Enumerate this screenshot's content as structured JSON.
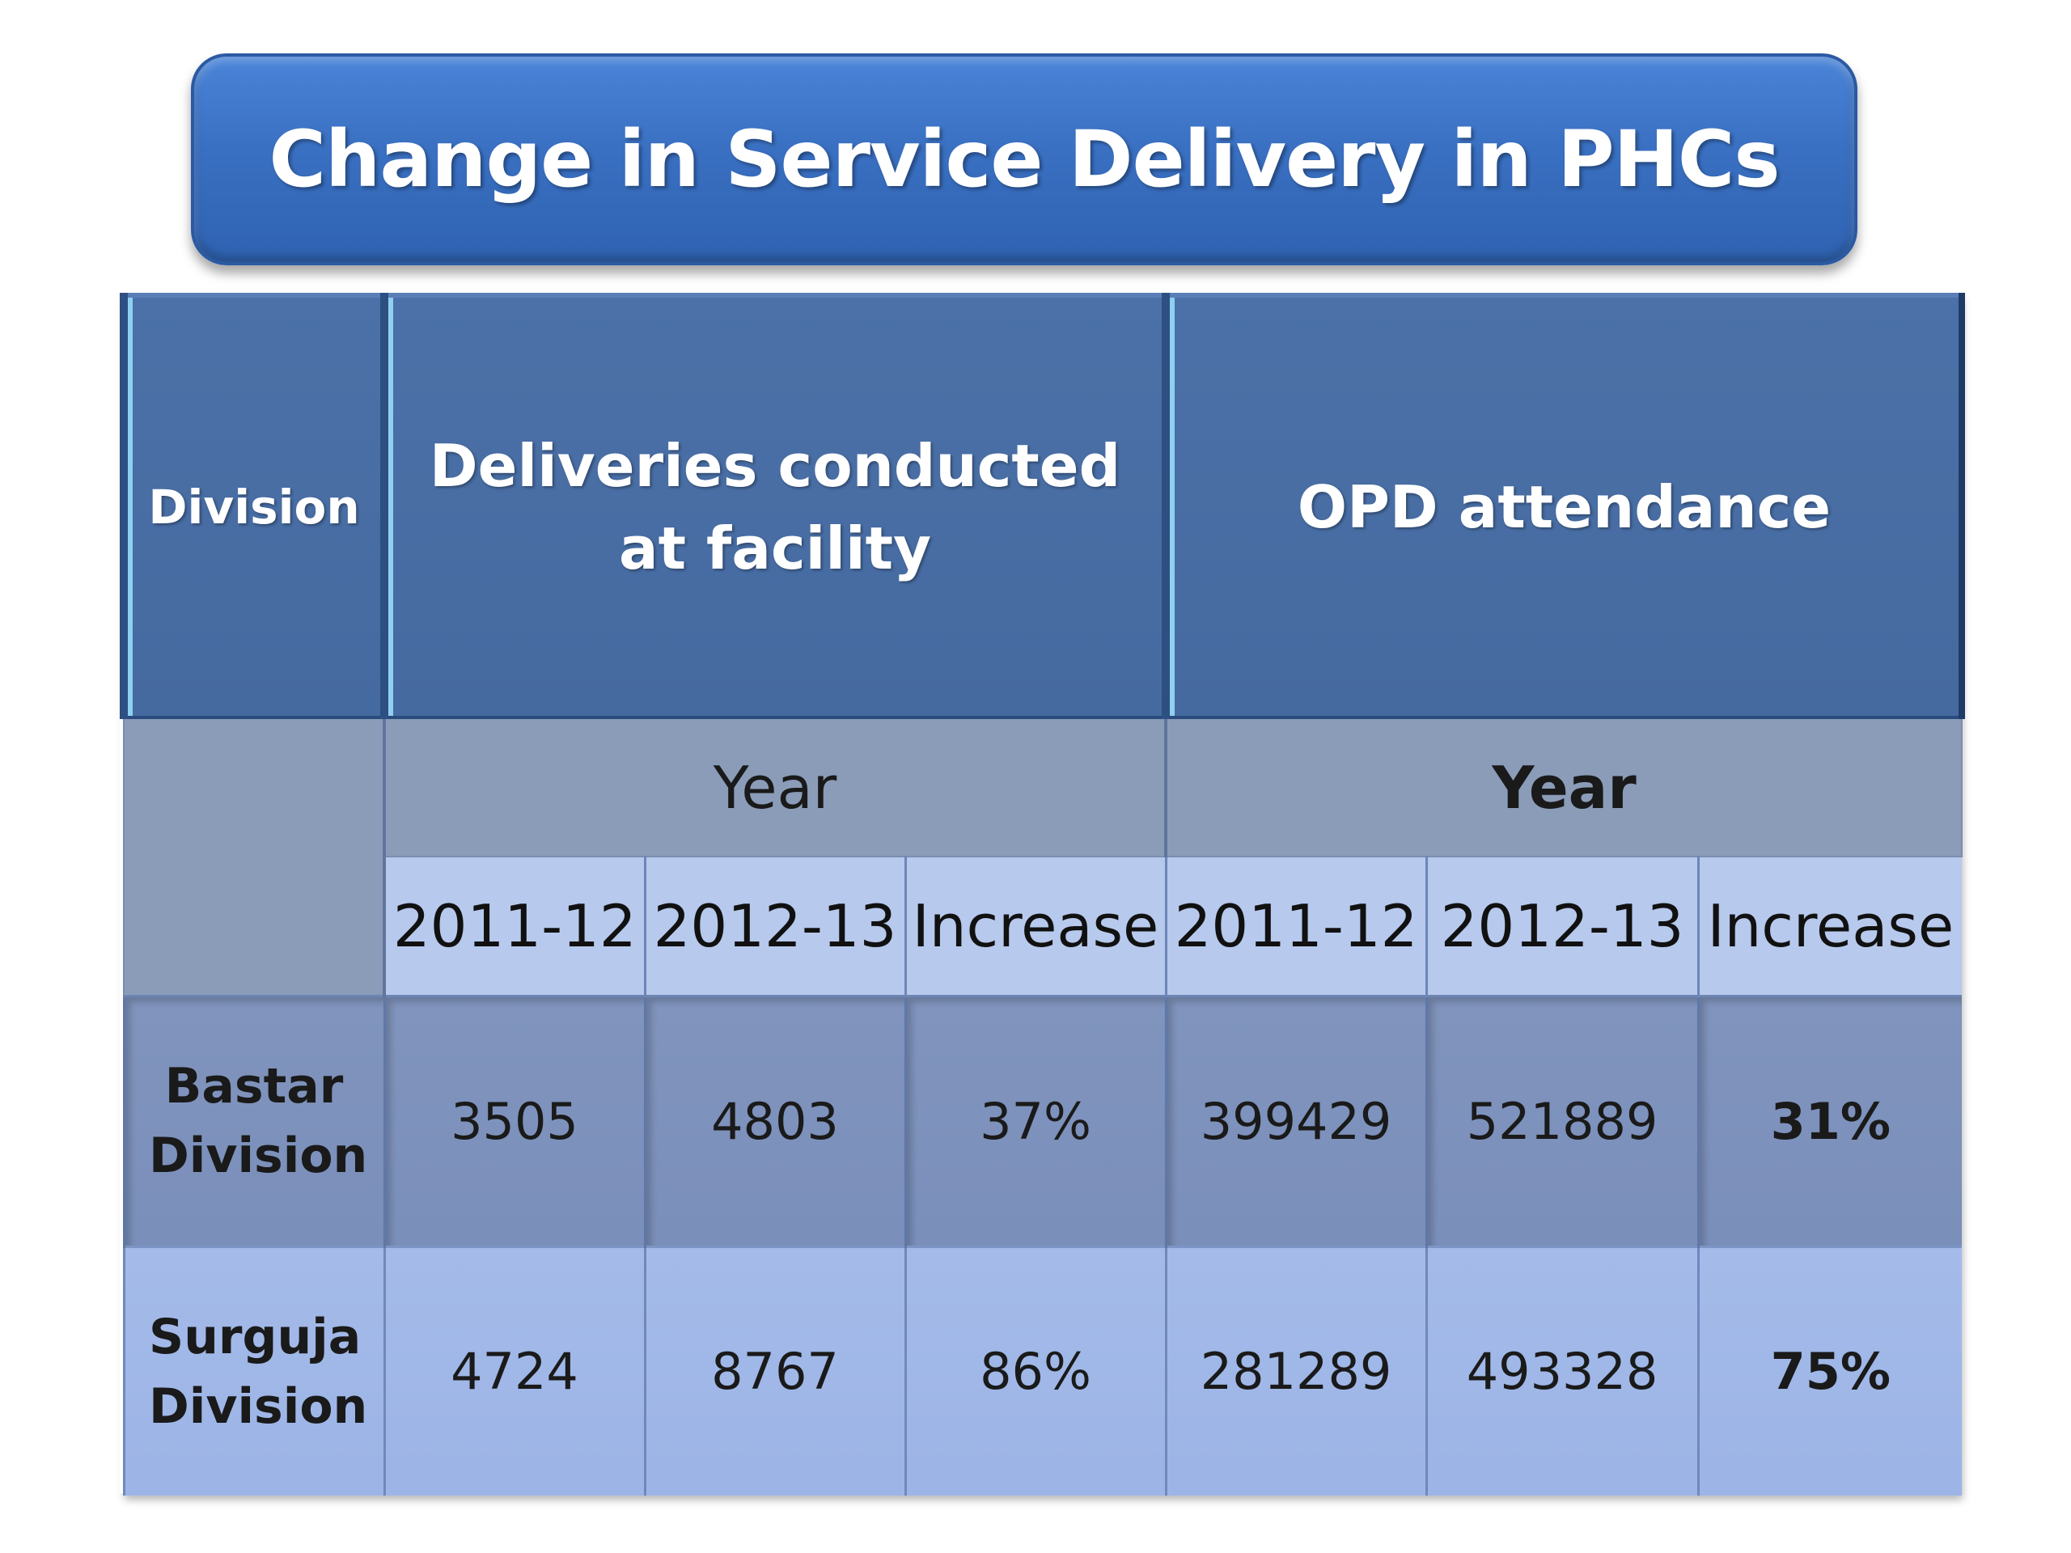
{
  "title": "Change in Service Delivery in PHCs",
  "table": {
    "header": {
      "division": "Division",
      "deliveries": "Deliveries conducted at facility",
      "opd": "OPD attendance"
    },
    "year_label_left": "Year",
    "year_label_right": "Year",
    "columns": [
      "2011-12",
      "2012-13",
      "Increase",
      "2011-12",
      "2012-13",
      "Increase"
    ],
    "rows": [
      {
        "division": "Bastar Division",
        "values": [
          "3505",
          "4803",
          "37%",
          "399429",
          "521889",
          "31%"
        ]
      },
      {
        "division": "Surguja Division",
        "values": [
          "4724",
          "8767",
          "86%",
          "281289",
          "493328",
          "75%"
        ]
      }
    ]
  }
}
